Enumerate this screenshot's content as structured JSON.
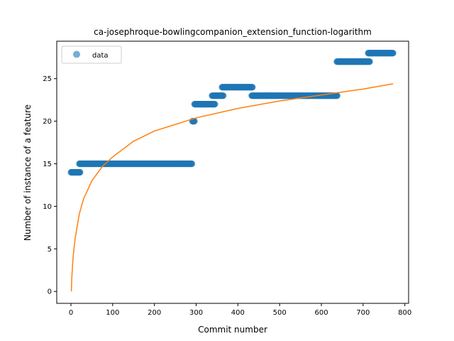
{
  "chart_data": {
    "type": "scatter",
    "title": "ca-josephroque-bowlingcompanion_extension_function-logarithm",
    "xlabel": "Commit number",
    "ylabel": "Number of instance of a feature",
    "xlim": [
      -34,
      809
    ],
    "ylim": [
      -1.4,
      29.4
    ],
    "xticks": [
      0,
      100,
      200,
      300,
      400,
      500,
      600,
      700,
      800
    ],
    "yticks": [
      0,
      5,
      10,
      15,
      20,
      25
    ],
    "grid": false,
    "legend": {
      "position": "upper-left",
      "entries": [
        "data"
      ]
    },
    "colors": {
      "data": "#1f77b4",
      "fit": "#ff7f0e"
    },
    "series": [
      {
        "name": "data",
        "kind": "scatter",
        "segments": [
          {
            "x_start": 0,
            "x_end": 22,
            "y": 14
          },
          {
            "x_start": 20,
            "x_end": 290,
            "y": 15
          },
          {
            "x_start": 291,
            "x_end": 296,
            "y": 20
          },
          {
            "x_start": 296,
            "x_end": 345,
            "y": 22
          },
          {
            "x_start": 338,
            "x_end": 365,
            "y": 23
          },
          {
            "x_start": 362,
            "x_end": 435,
            "y": 24
          },
          {
            "x_start": 433,
            "x_end": 638,
            "y": 23
          },
          {
            "x_start": 637,
            "x_end": 716,
            "y": 27
          },
          {
            "x_start": 712,
            "x_end": 772,
            "y": 28
          }
        ]
      },
      {
        "kind": "line",
        "function": "logarithm",
        "x_range": [
          1,
          772
        ],
        "points": [
          [
            1,
            0
          ],
          [
            2,
            1.54
          ],
          [
            5,
            3.94
          ],
          [
            10,
            6.22
          ],
          [
            20,
            9.1
          ],
          [
            30,
            10.84
          ],
          [
            50,
            12.99
          ],
          [
            75,
            14.67
          ],
          [
            100,
            15.8
          ],
          [
            150,
            17.65
          ],
          [
            200,
            18.85
          ],
          [
            300,
            20.39
          ],
          [
            400,
            21.5
          ],
          [
            500,
            22.38
          ],
          [
            600,
            23.08
          ],
          [
            700,
            23.78
          ],
          [
            772,
            24.4
          ]
        ]
      }
    ]
  }
}
